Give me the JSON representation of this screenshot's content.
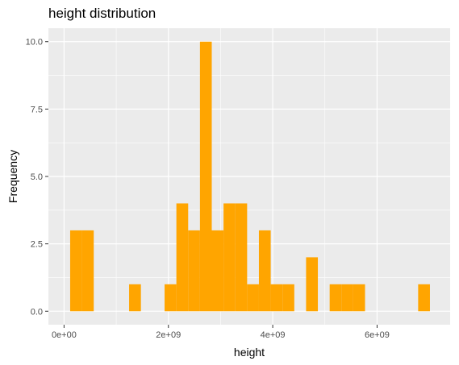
{
  "chart_data": {
    "type": "bar",
    "title": "height distribution",
    "xlabel": "height",
    "ylabel": "Frequency",
    "xlim": [
      -300000000,
      7400000000
    ],
    "ylim": [
      -0.5,
      10.5
    ],
    "x_ticks": [
      {
        "value": 0,
        "label": "0e+00"
      },
      {
        "value": 2000000000,
        "label": "2e+09"
      },
      {
        "value": 4000000000,
        "label": "4e+09"
      },
      {
        "value": 6000000000,
        "label": "6e+09"
      }
    ],
    "y_ticks": [
      {
        "value": 0,
        "label": "0.0"
      },
      {
        "value": 2.5,
        "label": "2.5"
      },
      {
        "value": 5,
        "label": "5.0"
      },
      {
        "value": 7.5,
        "label": "7.5"
      },
      {
        "value": 10,
        "label": "10.0"
      }
    ],
    "bin_width": 226000000,
    "bins": [
      {
        "x": 230000000,
        "count": 3
      },
      {
        "x": 456000000,
        "count": 3
      },
      {
        "x": 1360000000,
        "count": 1
      },
      {
        "x": 2040000000,
        "count": 1
      },
      {
        "x": 2266000000,
        "count": 4
      },
      {
        "x": 2492000000,
        "count": 3
      },
      {
        "x": 2718000000,
        "count": 10
      },
      {
        "x": 2944000000,
        "count": 3
      },
      {
        "x": 3170000000,
        "count": 4
      },
      {
        "x": 3396000000,
        "count": 4
      },
      {
        "x": 3622000000,
        "count": 1
      },
      {
        "x": 3848000000,
        "count": 3
      },
      {
        "x": 4074000000,
        "count": 1
      },
      {
        "x": 4300000000,
        "count": 1
      },
      {
        "x": 4752000000,
        "count": 2
      },
      {
        "x": 5204000000,
        "count": 1
      },
      {
        "x": 5430000000,
        "count": 1
      },
      {
        "x": 5656000000,
        "count": 1
      },
      {
        "x": 6900000000,
        "count": 1
      }
    ],
    "fill_color": "#FFA500",
    "panel_color": "#EBEBEB",
    "grid_color": "#FFFFFF",
    "grid": true,
    "legend": "none"
  }
}
